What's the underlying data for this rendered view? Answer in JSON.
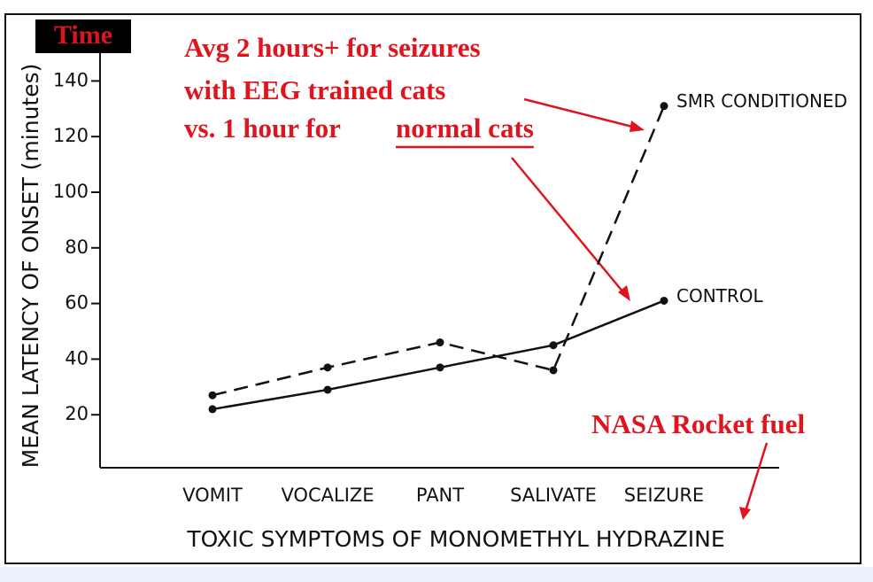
{
  "chart_data": {
    "type": "line",
    "title": "Time",
    "ylabel": "MEAN LATENCY OF ONSET (minutes)",
    "xlabel": "TOXIC SYMPTOMS OF MONOMETHYL HYDRAZINE",
    "categories": [
      "VOMIT",
      "VOCALIZE",
      "PANT",
      "SALIVATE",
      "SEIZURE"
    ],
    "series": [
      {
        "name": "SMR CONDITIONED",
        "color": "#111111",
        "linestyle": "dashed",
        "values": [
          27,
          37,
          46,
          36,
          131
        ]
      },
      {
        "name": "CONTROL",
        "color": "#111111",
        "linestyle": "solid",
        "values": [
          22,
          29,
          37,
          45,
          61
        ]
      }
    ],
    "ylim": [
      0,
      150
    ],
    "yticks": [
      20,
      40,
      60,
      80,
      100,
      120,
      140
    ],
    "annotations": [
      "Avg 2 hours+ for seizures",
      "with EEG trained cats",
      "vs. 1 hour for",
      "normal cats",
      "NASA Rocket fuel"
    ]
  }
}
